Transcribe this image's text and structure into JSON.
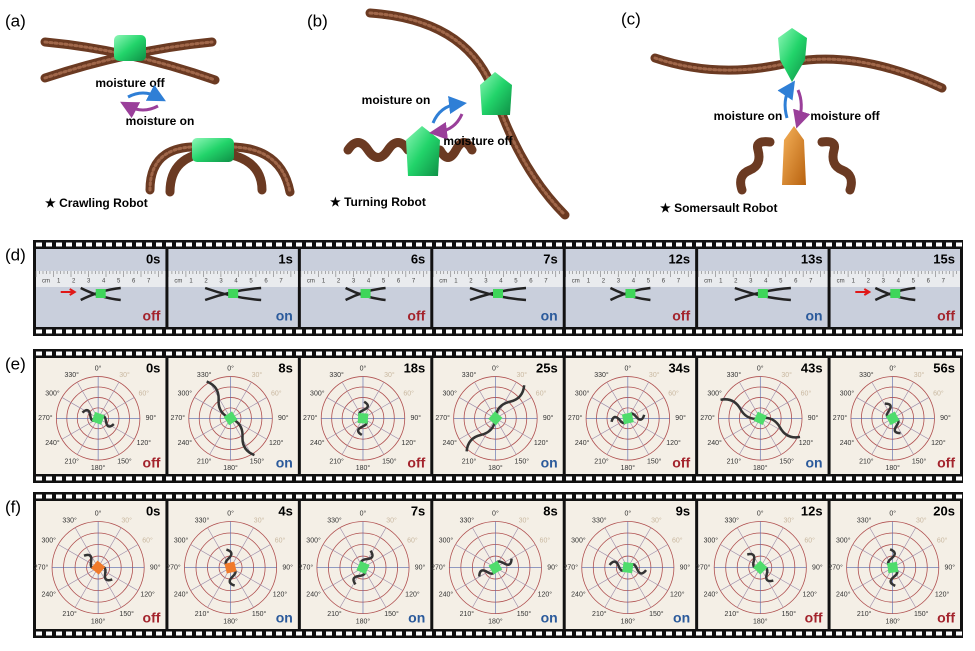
{
  "panels": [
    {
      "label": "(a)",
      "caption": "★ Crawling Robot",
      "states": [
        "moisture off",
        "moisture on"
      ]
    },
    {
      "label": "(b)",
      "caption": "★ Turning Robot",
      "states": [
        "moisture on",
        "moisture off"
      ]
    },
    {
      "label": "(c)",
      "caption": "★ Somersault Robot",
      "states": [
        "moisture on",
        "moisture off"
      ]
    }
  ],
  "strips": [
    {
      "label": "(d)",
      "frames": [
        {
          "time": "0s",
          "state": "off"
        },
        {
          "time": "1s",
          "state": "on"
        },
        {
          "time": "6s",
          "state": "off"
        },
        {
          "time": "7s",
          "state": "on"
        },
        {
          "time": "12s",
          "state": "off"
        },
        {
          "time": "13s",
          "state": "on"
        },
        {
          "time": "15s",
          "state": "off"
        }
      ]
    },
    {
      "label": "(e)",
      "frames": [
        {
          "time": "0s",
          "state": "off"
        },
        {
          "time": "8s",
          "state": "on"
        },
        {
          "time": "18s",
          "state": "off"
        },
        {
          "time": "25s",
          "state": "on"
        },
        {
          "time": "34s",
          "state": "off"
        },
        {
          "time": "43s",
          "state": "on"
        },
        {
          "time": "56s",
          "state": "off"
        }
      ]
    },
    {
      "label": "(f)",
      "frames": [
        {
          "time": "0s",
          "state": "off"
        },
        {
          "time": "4s",
          "state": "on"
        },
        {
          "time": "7s",
          "state": "on"
        },
        {
          "time": "8s",
          "state": "on"
        },
        {
          "time": "9s",
          "state": "on"
        },
        {
          "time": "12s",
          "state": "off"
        },
        {
          "time": "20s",
          "state": "off"
        }
      ]
    }
  ],
  "ruler_labels": [
    "cm",
    "1",
    "2",
    "3",
    "4",
    "5",
    "6",
    "7"
  ],
  "angle_labels": [
    "0°",
    "30°",
    "60°",
    "90°",
    "120°",
    "150°",
    "180°",
    "210°",
    "240°",
    "270°",
    "300°",
    "330°"
  ]
}
